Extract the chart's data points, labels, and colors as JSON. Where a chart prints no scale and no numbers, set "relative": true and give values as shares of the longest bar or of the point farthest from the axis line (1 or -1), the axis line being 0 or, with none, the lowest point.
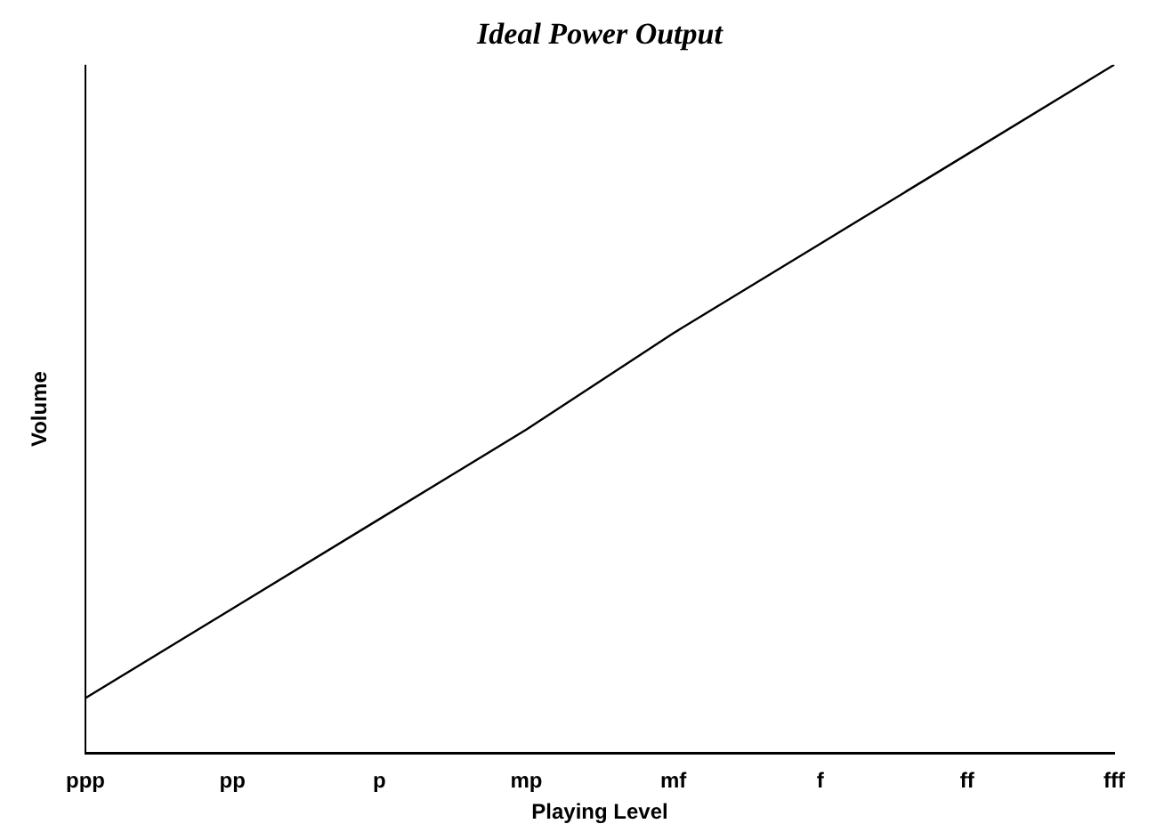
{
  "chart_data": {
    "type": "line",
    "title": "Ideal Power Output",
    "xlabel": "Playing Level",
    "ylabel": "Volume",
    "categories": [
      "ppp",
      "pp",
      "p",
      "mp",
      "mf",
      "f",
      "ff",
      "fff"
    ],
    "relative": true,
    "series": [
      {
        "color": "#000000",
        "values": [
          0.08,
          0.21,
          0.34,
          0.47,
          0.61,
          0.74,
          0.87,
          1.0
        ]
      }
    ],
    "grid": false,
    "legend": false,
    "marker": "none",
    "line_style": "solid"
  }
}
